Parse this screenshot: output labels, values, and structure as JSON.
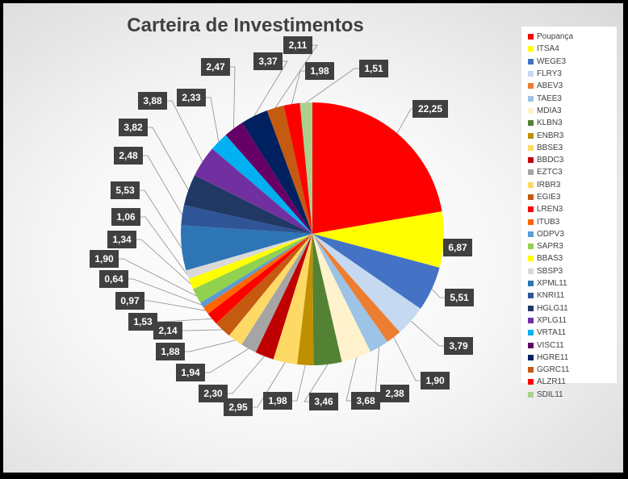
{
  "chart_data": {
    "type": "pie",
    "title": "Carteira de Investimentos",
    "legend_position": "right",
    "slices": [
      {
        "name": "Poupança",
        "value": 22.25,
        "label": "22,25",
        "color": "#ff0000"
      },
      {
        "name": "ITSA4",
        "value": 6.87,
        "label": "6,87",
        "color": "#ffff00"
      },
      {
        "name": "WEGE3",
        "value": 5.51,
        "label": "5,51",
        "color": "#4472c4"
      },
      {
        "name": "FLRY3",
        "value": 3.79,
        "label": "3,79",
        "color": "#c5d9f1"
      },
      {
        "name": "ABEV3",
        "value": 1.9,
        "label": "1,90",
        "color": "#ed7d31"
      },
      {
        "name": "TAEE3",
        "value": 2.38,
        "label": "2,38",
        "color": "#9dc3e6"
      },
      {
        "name": "MDIA3",
        "value": 3.68,
        "label": "3,68",
        "color": "#fff2cc"
      },
      {
        "name": "KLBN3",
        "value": 3.46,
        "label": "3,46",
        "color": "#548235"
      },
      {
        "name": "ENBR3",
        "value": 1.98,
        "label": "1,98",
        "color": "#bf9000"
      },
      {
        "name": "BBSE3",
        "value": 2.95,
        "label": "2,95",
        "color": "#ffd966"
      },
      {
        "name": "BBDC3",
        "value": 2.3,
        "label": "2,30",
        "color": "#c00000"
      },
      {
        "name": "EZTC3",
        "value": 1.94,
        "label": "1,94",
        "color": "#a5a5a5"
      },
      {
        "name": "IRBR3",
        "value": 1.88,
        "label": "1,88",
        "color": "#ffd966"
      },
      {
        "name": "EGIE3",
        "value": 2.14,
        "label": "2,14",
        "color": "#c55a11"
      },
      {
        "name": "LREN3",
        "value": 1.53,
        "label": "1,53",
        "color": "#ff0000"
      },
      {
        "name": "ITUB3",
        "value": 0.97,
        "label": "0,97",
        "color": "#ff6600"
      },
      {
        "name": "ODPV3",
        "value": 0.64,
        "label": "0,64",
        "color": "#5b9bd5"
      },
      {
        "name": "SAPR3",
        "value": 1.9,
        "label": "1,90",
        "color": "#92d050"
      },
      {
        "name": "BBAS3",
        "value": 1.34,
        "label": "1,34",
        "color": "#ffff00"
      },
      {
        "name": "SBSP3",
        "value": 1.06,
        "label": "1,06",
        "color": "#d9d9d9"
      },
      {
        "name": "XPML11",
        "value": 5.53,
        "label": "5,53",
        "color": "#2e75b6"
      },
      {
        "name": "KNRI11",
        "value": 2.48,
        "label": "2,48",
        "color": "#2f5597"
      },
      {
        "name": "HGLG11",
        "value": 3.82,
        "label": "3,82",
        "color": "#203864"
      },
      {
        "name": "XPLG11",
        "value": 3.88,
        "label": "3,88",
        "color": "#7030a0"
      },
      {
        "name": "VRTA11",
        "value": 2.33,
        "label": "2,33",
        "color": "#00b0f0"
      },
      {
        "name": "VISC11",
        "value": 2.47,
        "label": "2,47",
        "color": "#660066"
      },
      {
        "name": "HGRE11",
        "value": 3.37,
        "label": "3,37",
        "color": "#002060"
      },
      {
        "name": "GGRC11",
        "value": 2.11,
        "label": "2,11",
        "color": "#c55a11"
      },
      {
        "name": "ALZR11",
        "value": 1.98,
        "label": "1,98",
        "color": "#ff0000"
      },
      {
        "name": "SDIL11",
        "value": 1.51,
        "label": "1,51",
        "color": "#a9d18e"
      }
    ]
  }
}
